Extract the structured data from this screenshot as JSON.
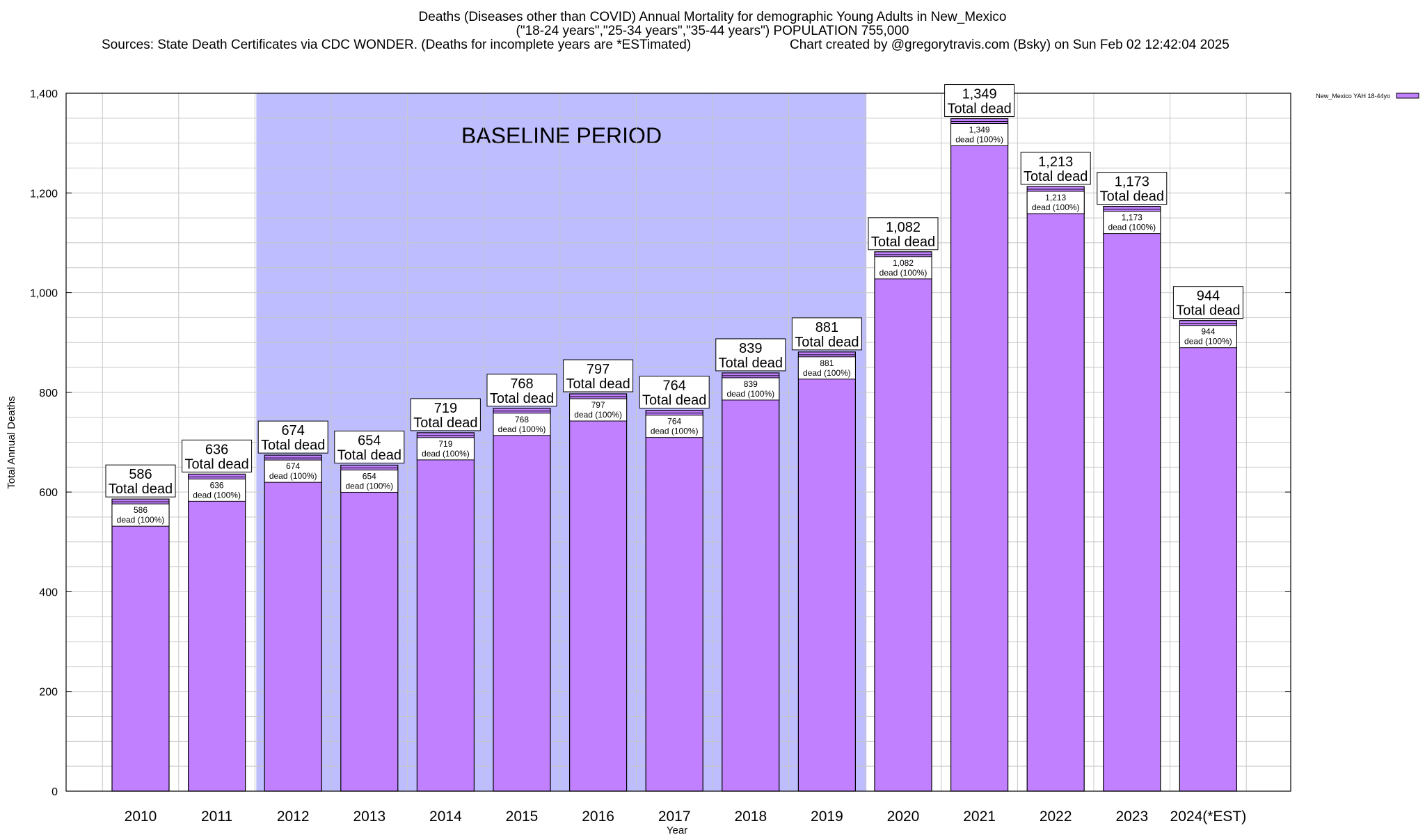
{
  "chart_data": {
    "type": "bar",
    "title": "Deaths (Diseases other than COVID) Annual Mortality for demographic Young Adults in New_Mexico",
    "subtitle": "(\"18-24 years\",\"25-34 years\",\"35-44 years\") POPULATION 755,000",
    "sources": "Sources: State Death Certificates via CDC WONDER. (Deaths for incomplete years are *ESTimated)",
    "credit": "Chart created by @gregorytravis.com (Bsky) on Sun Feb 02 12:42:04 2025",
    "xlabel": "Year",
    "ylabel": "Total Annual Deaths",
    "ylim": [
      0,
      1400
    ],
    "yticks": [
      0,
      200,
      400,
      600,
      800,
      1000,
      1200,
      1400
    ],
    "ytick_labels": [
      "0",
      "200",
      "400",
      "600",
      "800",
      "1,000",
      "1,200",
      "1,400"
    ],
    "grid": true,
    "legend": {
      "position": "top-right",
      "entries": [
        "New_Mexico YAH 18-44yo"
      ]
    },
    "categories": [
      "2010",
      "2011",
      "2012",
      "2013",
      "2014",
      "2015",
      "2016",
      "2017",
      "2018",
      "2019",
      "2020",
      "2021",
      "2022",
      "2023",
      "2024(*EST)"
    ],
    "series": [
      {
        "name": "New_Mexico YAH 18-44yo",
        "values": [
          586,
          636,
          674,
          654,
          719,
          768,
          797,
          764,
          839,
          881,
          1082,
          1349,
          1213,
          1173,
          944
        ],
        "value_labels": [
          "586",
          "636",
          "674",
          "654",
          "719",
          "768",
          "797",
          "764",
          "839",
          "881",
          "1,082",
          "1,349",
          "1,213",
          "1,173",
          "944"
        ],
        "color": "#c080ff"
      }
    ],
    "label_top_line2": "Total dead",
    "label_inner_line2": "dead (100%)",
    "baseline_band": {
      "label": "BASELINE PERIOD",
      "from": "2012",
      "to": "2019",
      "color": "#bdbdff"
    },
    "colors": {
      "bar": "#c080ff",
      "band": "#bdbdff",
      "grid": "#c8c8c8",
      "axis": "#000000"
    }
  }
}
